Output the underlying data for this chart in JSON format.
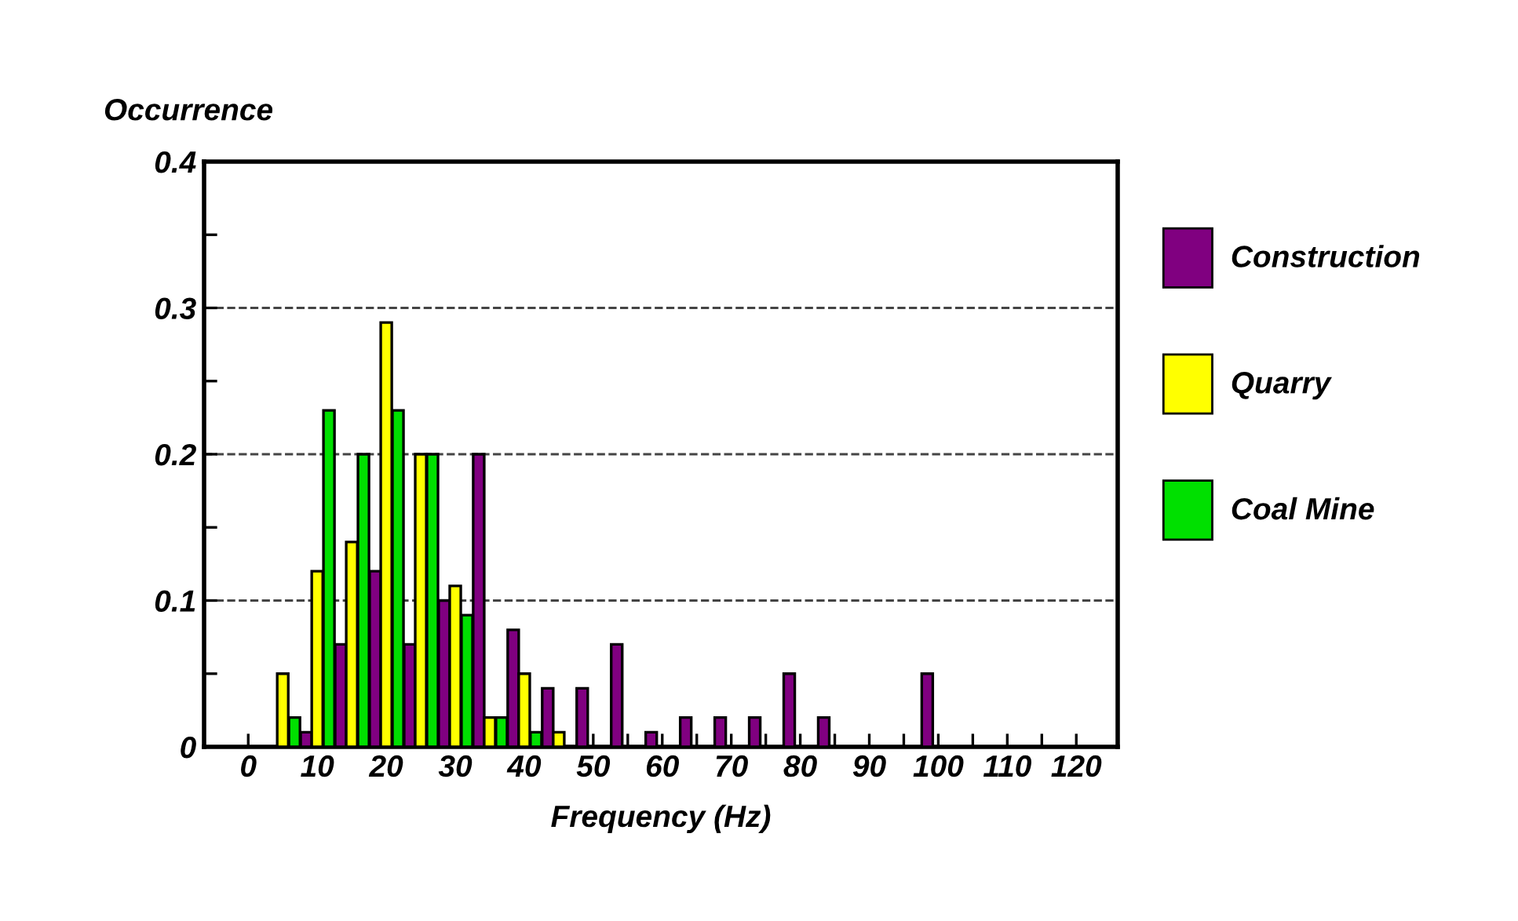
{
  "chart_data": {
    "type": "bar",
    "xlabel": "Frequency (Hz)",
    "ylabel": "Occurrence",
    "series": [
      {
        "name": "Construction",
        "color": "#800080",
        "x": [
          8.4,
          13.4,
          18.4,
          23.4,
          28.4,
          33.4,
          38.4,
          43.4,
          48.4,
          53.4,
          58.4,
          63.4,
          68.4,
          73.4,
          78.4,
          83.4,
          98.4
        ],
        "values": [
          0.01,
          0.07,
          0.12,
          0.07,
          0.1,
          0.2,
          0.08,
          0.04,
          0.04,
          0.07,
          0.01,
          0.02,
          0.02,
          0.02,
          0.05,
          0.02,
          0.05
        ]
      },
      {
        "name": "Quarry",
        "color": "#ffff00",
        "x": [
          5,
          10,
          15,
          20,
          25,
          30,
          35,
          40,
          45
        ],
        "values": [
          0.05,
          0.12,
          0.14,
          0.29,
          0.2,
          0.11,
          0.02,
          0.05,
          0.01
        ]
      },
      {
        "name": "Coal Mine",
        "color": "#00e000",
        "x": [
          6.7,
          11.7,
          16.7,
          21.7,
          26.7,
          31.7,
          36.7,
          41.7
        ],
        "values": [
          0.02,
          0.23,
          0.2,
          0.23,
          0.2,
          0.09,
          0.02,
          0.01
        ]
      }
    ],
    "xlim": [
      -6.4,
      126
    ],
    "xticks": [
      0,
      {
        "value": 5,
        "label": null
      },
      10,
      {
        "value": 15,
        "label": null
      },
      20,
      {
        "value": 25,
        "label": null
      },
      30,
      {
        "value": 35,
        "label": null
      },
      40,
      {
        "value": 45,
        "label": null
      },
      50,
      {
        "value": 55,
        "label": null
      },
      60,
      {
        "value": 65,
        "label": null
      },
      70,
      {
        "value": 75,
        "label": null
      },
      80,
      {
        "value": 85,
        "label": null
      },
      90,
      {
        "value": 95,
        "label": null
      },
      100,
      {
        "value": 105,
        "label": null
      },
      110,
      {
        "value": 115,
        "label": null
      },
      120
    ],
    "ylim": [
      0,
      0.4
    ],
    "yticks": [
      0,
      {
        "value": 0.05,
        "label": null
      },
      0.1,
      {
        "value": 0.15,
        "label": null
      },
      0.2,
      {
        "value": 0.25,
        "label": null
      },
      0.3,
      {
        "value": 0.35,
        "label": null
      },
      0.4
    ],
    "grid": "y",
    "line_style": "dashed",
    "legend": "right"
  }
}
